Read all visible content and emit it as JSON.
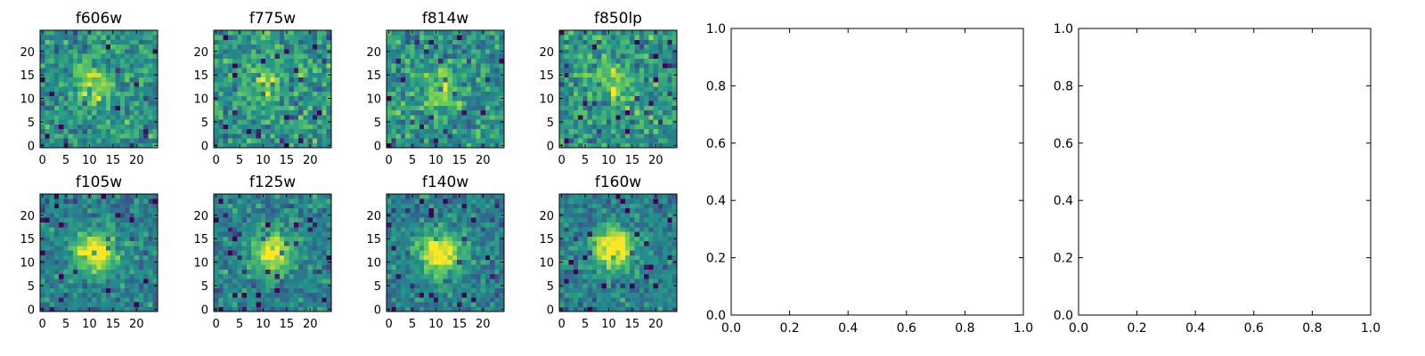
{
  "figure": {
    "background": "#ffffff",
    "colormap": "viridis",
    "colormap_stops": [
      "#440154",
      "#3b528b",
      "#21918c",
      "#5ec962",
      "#fde725"
    ]
  },
  "chart_data": [
    {
      "type": "heatmap",
      "title": "f606w",
      "grid_size": [
        25,
        25
      ],
      "x_ticks": [
        0,
        5,
        10,
        15,
        20
      ],
      "y_ticks": [
        0,
        5,
        10,
        15,
        20
      ],
      "xlim": [
        -0.5,
        24.5
      ],
      "ylim": [
        -0.5,
        24.5
      ],
      "source_peak": [
        11,
        13
      ],
      "source_strength": 0.35,
      "noise_seed": 11
    },
    {
      "type": "heatmap",
      "title": "f775w",
      "grid_size": [
        25,
        25
      ],
      "x_ticks": [
        0,
        5,
        10,
        15,
        20
      ],
      "y_ticks": [
        0,
        5,
        10,
        15,
        20
      ],
      "xlim": [
        -0.5,
        24.5
      ],
      "ylim": [
        -0.5,
        24.5
      ],
      "source_peak": [
        11,
        13
      ],
      "source_strength": 0.25,
      "noise_seed": 23
    },
    {
      "type": "heatmap",
      "title": "f814w",
      "grid_size": [
        25,
        25
      ],
      "x_ticks": [
        0,
        5,
        10,
        15,
        20
      ],
      "y_ticks": [
        0,
        5,
        10,
        15,
        20
      ],
      "xlim": [
        -0.5,
        24.5
      ],
      "ylim": [
        -0.5,
        24.5
      ],
      "source_peak": [
        11,
        12
      ],
      "source_strength": 0.3,
      "noise_seed": 37
    },
    {
      "type": "heatmap",
      "title": "f850lp",
      "grid_size": [
        25,
        25
      ],
      "x_ticks": [
        0,
        5,
        10,
        15,
        20
      ],
      "y_ticks": [
        0,
        5,
        10,
        15,
        20
      ],
      "xlim": [
        -0.5,
        24.5
      ],
      "ylim": [
        -0.5,
        24.5
      ],
      "source_peak": [
        11,
        13
      ],
      "source_strength": 0.25,
      "noise_seed": 41
    },
    {
      "type": "heatmap",
      "title": "f105w",
      "grid_size": [
        25,
        25
      ],
      "x_ticks": [
        0,
        5,
        10,
        15,
        20
      ],
      "y_ticks": [
        0,
        5,
        10,
        15,
        20
      ],
      "xlim": [
        -0.5,
        24.5
      ],
      "ylim": [
        -0.5,
        24.5
      ],
      "source_peak": [
        11,
        12
      ],
      "source_strength": 0.65,
      "noise_seed": 53
    },
    {
      "type": "heatmap",
      "title": "f125w",
      "grid_size": [
        25,
        25
      ],
      "x_ticks": [
        0,
        5,
        10,
        15,
        20
      ],
      "y_ticks": [
        0,
        5,
        10,
        15,
        20
      ],
      "xlim": [
        -0.5,
        24.5
      ],
      "ylim": [
        -0.5,
        24.5
      ],
      "source_peak": [
        12,
        12
      ],
      "source_strength": 0.6,
      "noise_seed": 67
    },
    {
      "type": "heatmap",
      "title": "f140w",
      "grid_size": [
        25,
        25
      ],
      "x_ticks": [
        0,
        5,
        10,
        15,
        20
      ],
      "y_ticks": [
        0,
        5,
        10,
        15,
        20
      ],
      "xlim": [
        -0.5,
        24.5
      ],
      "ylim": [
        -0.5,
        24.5
      ],
      "source_peak": [
        11,
        12
      ],
      "source_strength": 0.65,
      "noise_seed": 79
    },
    {
      "type": "heatmap",
      "title": "f160w",
      "grid_size": [
        25,
        25
      ],
      "x_ticks": [
        0,
        5,
        10,
        15,
        20
      ],
      "y_ticks": [
        0,
        5,
        10,
        15,
        20
      ],
      "xlim": [
        -0.5,
        24.5
      ],
      "ylim": [
        -0.5,
        24.5
      ],
      "source_peak": [
        11,
        13
      ],
      "source_strength": 0.7,
      "noise_seed": 97
    },
    {
      "type": "line",
      "title": "",
      "xlim": [
        0.0,
        1.0
      ],
      "ylim": [
        0.0,
        1.0
      ],
      "x_ticks": [
        "0.0",
        "0.2",
        "0.4",
        "0.6",
        "0.8",
        "1.0"
      ],
      "y_ticks": [
        "0.0",
        "0.2",
        "0.4",
        "0.6",
        "0.8",
        "1.0"
      ],
      "series": []
    },
    {
      "type": "line",
      "title": "",
      "xlim": [
        0.0,
        1.0
      ],
      "ylim": [
        0.0,
        1.0
      ],
      "x_ticks": [
        "0.0",
        "0.2",
        "0.4",
        "0.6",
        "0.8",
        "1.0"
      ],
      "y_ticks": [
        "0.0",
        "0.2",
        "0.4",
        "0.6",
        "0.8",
        "1.0"
      ],
      "series": []
    }
  ]
}
